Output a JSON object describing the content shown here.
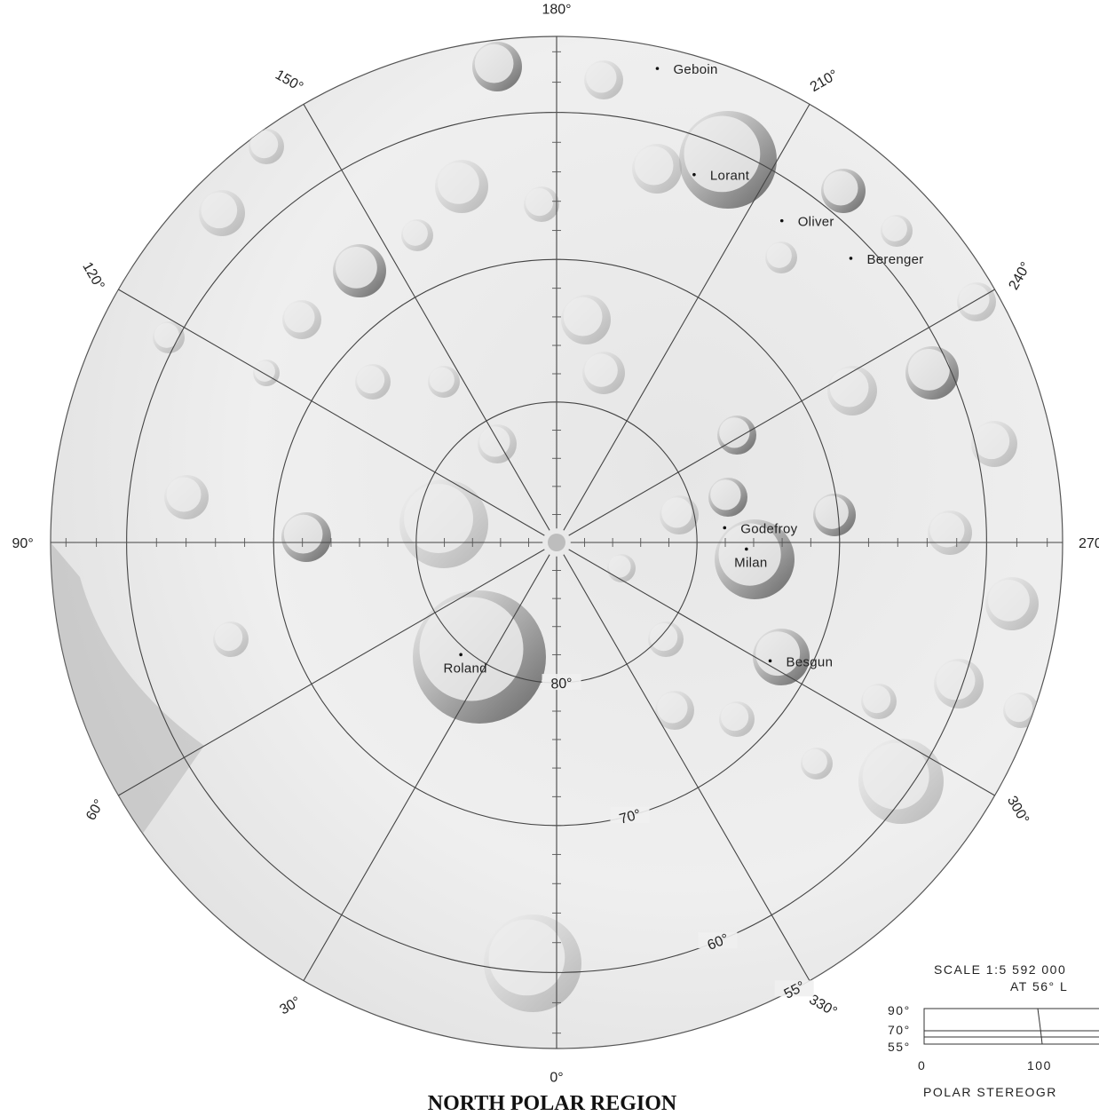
{
  "title": "NORTH POLAR REGION",
  "longitudes": [
    {
      "value": 0,
      "label": "0°"
    },
    {
      "value": 30,
      "label": "30°"
    },
    {
      "value": 60,
      "label": "60°"
    },
    {
      "value": 90,
      "label": "90°"
    },
    {
      "value": 120,
      "label": "120°"
    },
    {
      "value": 150,
      "label": "150°"
    },
    {
      "value": 180,
      "label": "180°"
    },
    {
      "value": 210,
      "label": "210°"
    },
    {
      "value": 240,
      "label": "240°"
    },
    {
      "value": 270,
      "label": "270"
    },
    {
      "value": 300,
      "label": "300°"
    },
    {
      "value": 330,
      "label": "330°"
    }
  ],
  "latitudes": [
    {
      "value": 80,
      "label": "80°"
    },
    {
      "value": 70,
      "label": "70°"
    },
    {
      "value": 60,
      "label": "60°"
    },
    {
      "value": 55,
      "label": "55°"
    }
  ],
  "craters": [
    {
      "name": "Geboin",
      "lat": 56.4,
      "lon": 192
    },
    {
      "name": "Lorant",
      "lat": 62.5,
      "lon": 200.5
    },
    {
      "name": "Oliver",
      "lat": 62.5,
      "lon": 215
    },
    {
      "name": "Berenger",
      "lat": 61.4,
      "lon": 226
    },
    {
      "name": "Godefroy",
      "lat": 78,
      "lon": 265
    },
    {
      "name": "Milan",
      "lat": 76.5,
      "lon": 272
    },
    {
      "name": "Besgun",
      "lat": 72.7,
      "lon": 299
    },
    {
      "name": "Roland",
      "lat": 79.5,
      "lon": 40.5
    }
  ],
  "scale": {
    "scale_label": "SCALE 1:5 592 000",
    "at_label": "AT 56°  L",
    "lat_labels": [
      "90°",
      "70°",
      "55°"
    ],
    "distance_labels": [
      "0",
      "100"
    ],
    "projection_label": "POLAR STEREOGR"
  }
}
